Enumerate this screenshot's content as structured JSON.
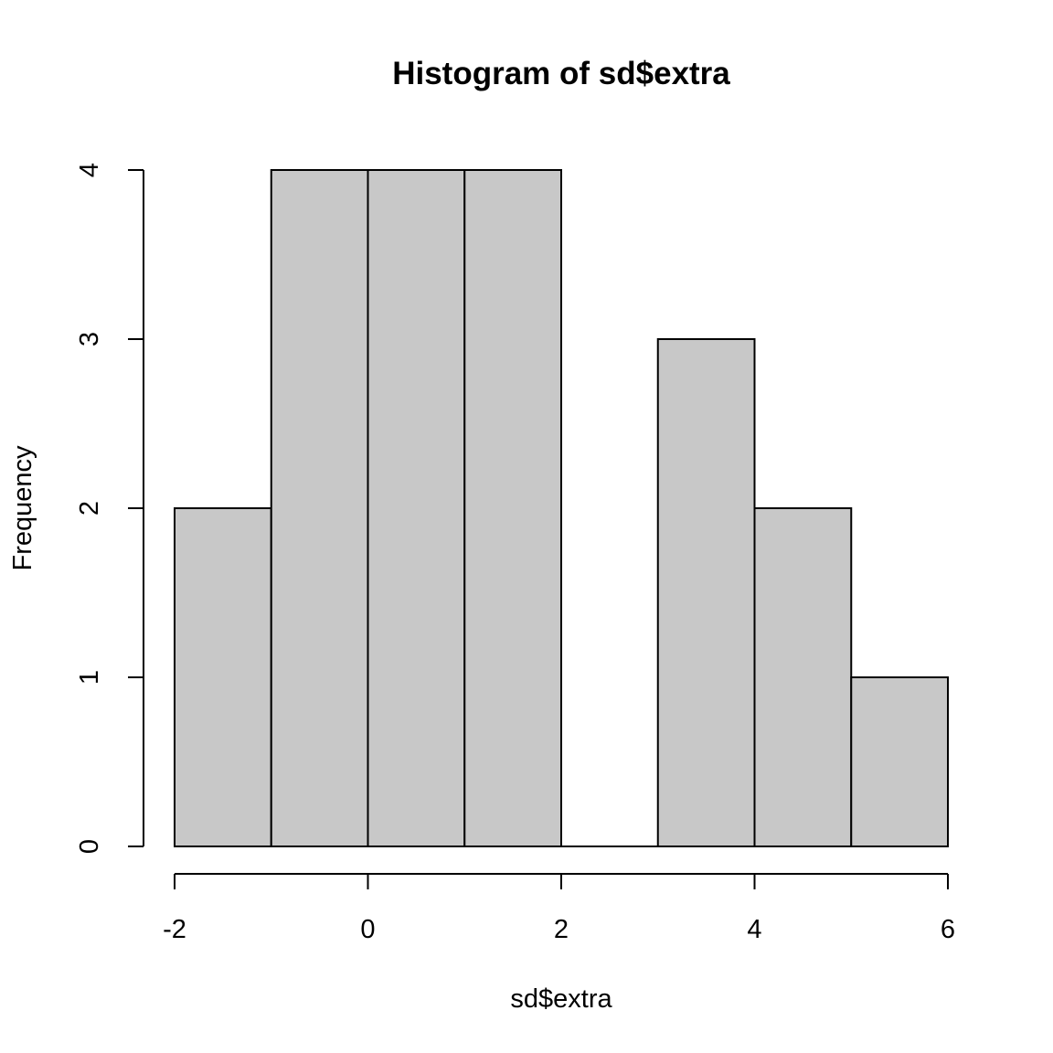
{
  "chart_data": {
    "type": "bar",
    "title": "Histogram of sd$extra",
    "xlabel": "sd$extra",
    "ylabel": "Frequency",
    "bins": [
      {
        "start": -2,
        "end": -1,
        "count": 2
      },
      {
        "start": -1,
        "end": 0,
        "count": 4
      },
      {
        "start": 0,
        "end": 1,
        "count": 4
      },
      {
        "start": 1,
        "end": 2,
        "count": 4
      },
      {
        "start": 2,
        "end": 3,
        "count": 0
      },
      {
        "start": 3,
        "end": 4,
        "count": 3
      },
      {
        "start": 4,
        "end": 5,
        "count": 2
      },
      {
        "start": 5,
        "end": 6,
        "count": 1
      }
    ],
    "xlim": [
      -2,
      6
    ],
    "ylim": [
      0,
      4
    ],
    "x_ticks": [
      -2,
      0,
      2,
      4,
      6
    ],
    "x_tick_labels": [
      "-2",
      "0",
      "2",
      "4",
      "6"
    ],
    "y_ticks": [
      0,
      1,
      2,
      3,
      4
    ],
    "y_tick_labels": [
      "0",
      "1",
      "2",
      "3",
      "4"
    ],
    "bar_color": "#c8c8c8",
    "grid": false
  }
}
